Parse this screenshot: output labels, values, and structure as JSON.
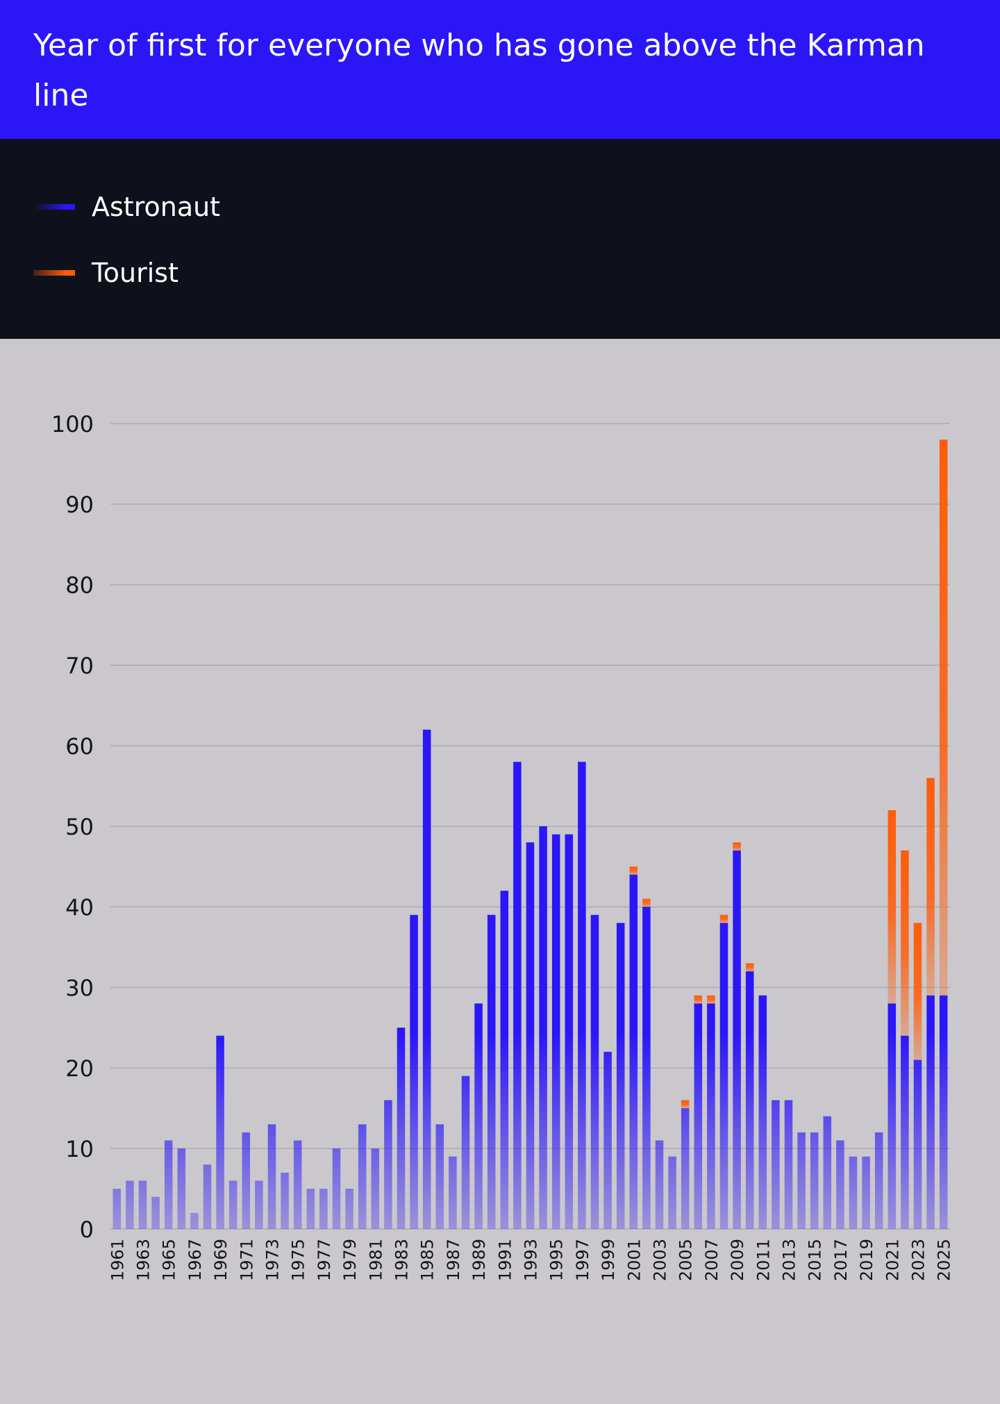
{
  "header": {
    "title": "Year of first for everyone who has gone above the Karman line"
  },
  "legend": {
    "items": [
      {
        "label": "Astronaut",
        "color": "#2b16f8"
      },
      {
        "label": "Tourist",
        "color": "#ff5c0a"
      }
    ]
  },
  "colors": {
    "astronaut": "#2b16f8",
    "tourist": "#ff5c0a",
    "chart_bg": "#cac8cc",
    "grid": "#b4b2b8",
    "header_bg": "#2b16f8",
    "legend_bg": "#0e111b"
  },
  "chart_data": {
    "type": "bar",
    "stacked": true,
    "title": "Year of first for everyone who has gone above the Karman line",
    "xlabel": "",
    "ylabel": "",
    "ylim": [
      0,
      100
    ],
    "y_ticks": [
      0,
      10,
      20,
      30,
      40,
      50,
      60,
      70,
      80,
      90,
      100
    ],
    "grid": true,
    "legend_position": "top",
    "x_tick_labels": [
      "1961",
      "1963",
      "1965",
      "1967",
      "1969",
      "1971",
      "1973",
      "1975",
      "1977",
      "1979",
      "1981",
      "1983",
      "1985",
      "1987",
      "1989",
      "1991",
      "1993",
      "1995",
      "1997",
      "1999",
      "2001",
      "2003",
      "2005",
      "2007",
      "2009",
      "2011",
      "2013",
      "2015",
      "2017",
      "2019",
      "2021",
      "2023",
      "2025"
    ],
    "categories": [
      "1961",
      "1962",
      "1963",
      "1964",
      "1965",
      "1966",
      "1967",
      "1968",
      "1969",
      "1970",
      "1971",
      "1972",
      "1973",
      "1974",
      "1975",
      "1976",
      "1977",
      "1978",
      "1979",
      "1980",
      "1981",
      "1982",
      "1983",
      "1984",
      "1985",
      "1986",
      "1987",
      "1988",
      "1989",
      "1990",
      "1991",
      "1992",
      "1993",
      "1994",
      "1995",
      "1996",
      "1997",
      "1998",
      "1999",
      "2000",
      "2001",
      "2002",
      "2003",
      "2004",
      "2005",
      "2006",
      "2007",
      "2008",
      "2009",
      "2010",
      "2011",
      "2012",
      "2013",
      "2014",
      "2015",
      "2016",
      "2017",
      "2018",
      "2019",
      "2020",
      "2021",
      "2022",
      "2023",
      "2024",
      "2025"
    ],
    "series": [
      {
        "name": "Astronaut",
        "values": [
          5,
          6,
          6,
          4,
          11,
          10,
          2,
          8,
          24,
          6,
          12,
          6,
          13,
          7,
          11,
          5,
          5,
          10,
          5,
          13,
          10,
          16,
          25,
          39,
          62,
          13,
          9,
          19,
          28,
          39,
          42,
          58,
          48,
          50,
          49,
          49,
          58,
          39,
          22,
          38,
          44,
          40,
          11,
          9,
          15,
          28,
          28,
          38,
          47,
          32,
          29,
          16,
          16,
          12,
          12,
          14,
          11,
          9,
          9,
          12,
          28,
          24,
          21,
          29,
          29
        ]
      },
      {
        "name": "Tourist",
        "values": [
          0,
          0,
          0,
          0,
          0,
          0,
          0,
          0,
          0,
          0,
          0,
          0,
          0,
          0,
          0,
          0,
          0,
          0,
          0,
          0,
          0,
          0,
          0,
          0,
          0,
          0,
          0,
          0,
          0,
          0,
          0,
          0,
          0,
          0,
          0,
          0,
          0,
          0,
          0,
          0,
          1,
          1,
          0,
          0,
          1,
          1,
          1,
          1,
          1,
          1,
          0,
          0,
          0,
          0,
          0,
          0,
          0,
          0,
          0,
          0,
          24,
          23,
          17,
          27,
          69
        ]
      }
    ]
  }
}
